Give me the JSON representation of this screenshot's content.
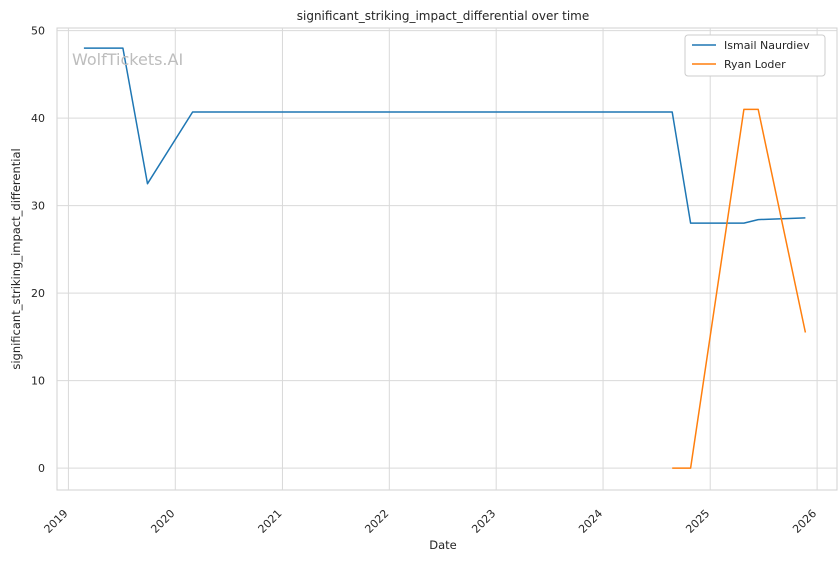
{
  "chart_data": {
    "type": "line",
    "title": "significant_striking_impact_differential over time",
    "xlabel": "Date",
    "ylabel": "significant_striking_impact_differential",
    "watermark": "WolfTickets.AI",
    "xlim": [
      "2018-11-23",
      "2026-03-10"
    ],
    "ylim": [
      -2.5,
      50.3
    ],
    "x_ticks": [
      "2019",
      "2020",
      "2021",
      "2022",
      "2023",
      "2024",
      "2025",
      "2026"
    ],
    "y_ticks": [
      "0",
      "10",
      "20",
      "30",
      "40",
      "50"
    ],
    "grid": true,
    "legend_position": "top-right",
    "series": [
      {
        "name": "Ismail Naurdiev",
        "color": "#1f77b4",
        "points": [
          {
            "x": "2019-02-23",
            "y": 48.0
          },
          {
            "x": "2019-07-06",
            "y": 48.0
          },
          {
            "x": "2019-09-28",
            "y": 32.5
          },
          {
            "x": "2020-02-29",
            "y": 40.7
          },
          {
            "x": "2024-08-24",
            "y": 40.7
          },
          {
            "x": "2024-10-26",
            "y": 28.0
          },
          {
            "x": "2025-04-26",
            "y": 28.0
          },
          {
            "x": "2025-06-14",
            "y": 28.4
          },
          {
            "x": "2025-11-22",
            "y": 28.6
          }
        ]
      },
      {
        "name": "Ryan Loder",
        "color": "#ff7f0e",
        "points": [
          {
            "x": "2024-08-24",
            "y": 0.0
          },
          {
            "x": "2024-10-26",
            "y": 0.0
          },
          {
            "x": "2025-04-26",
            "y": 41.0
          },
          {
            "x": "2025-06-14",
            "y": 41.0
          },
          {
            "x": "2025-11-22",
            "y": 15.5
          }
        ]
      }
    ]
  }
}
